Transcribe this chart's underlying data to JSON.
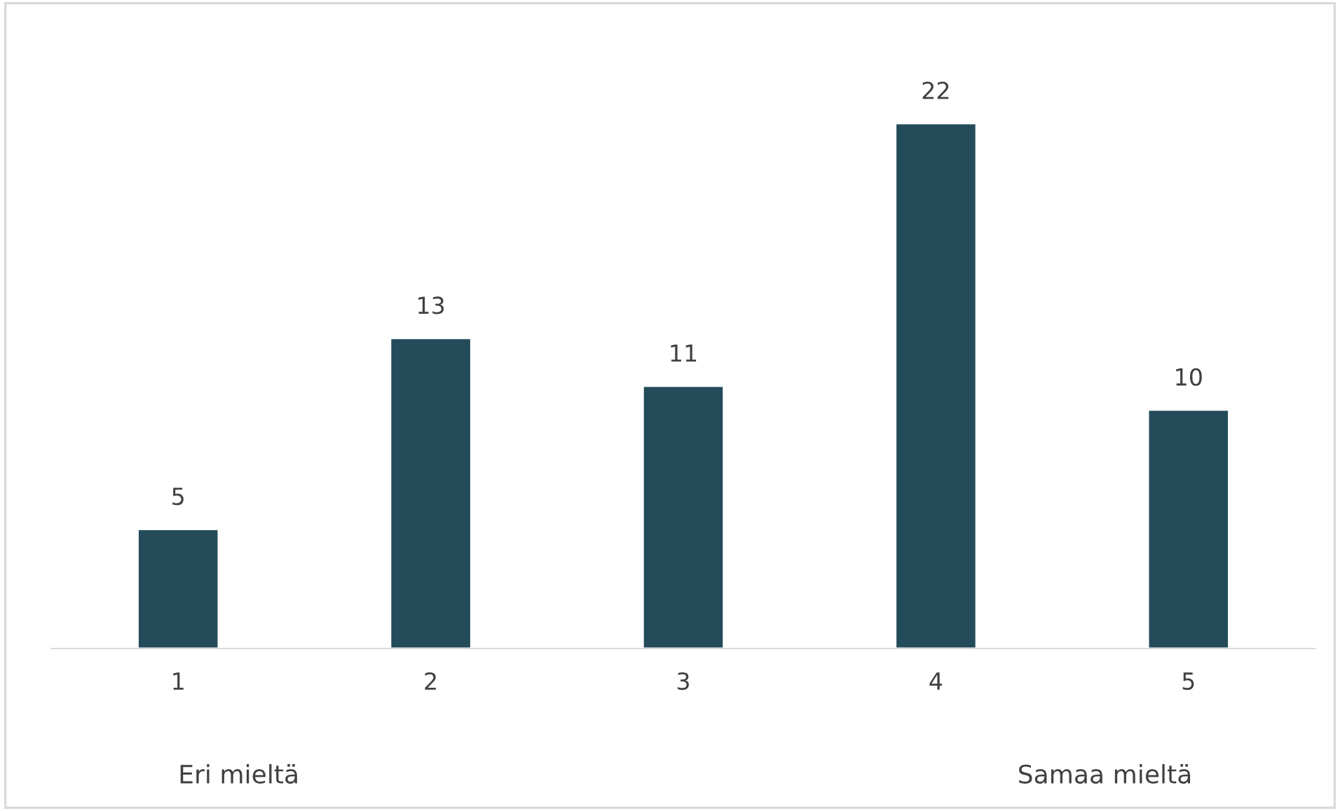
{
  "chart_data": {
    "type": "bar",
    "categories": [
      "1",
      "2",
      "3",
      "4",
      "5"
    ],
    "values": [
      5,
      13,
      11,
      22,
      10
    ],
    "color": "#234b5a",
    "data_labels": true,
    "grid": false,
    "legend": false,
    "annotations": [
      "Eri mieltä",
      "Samaa mieltä"
    ]
  }
}
